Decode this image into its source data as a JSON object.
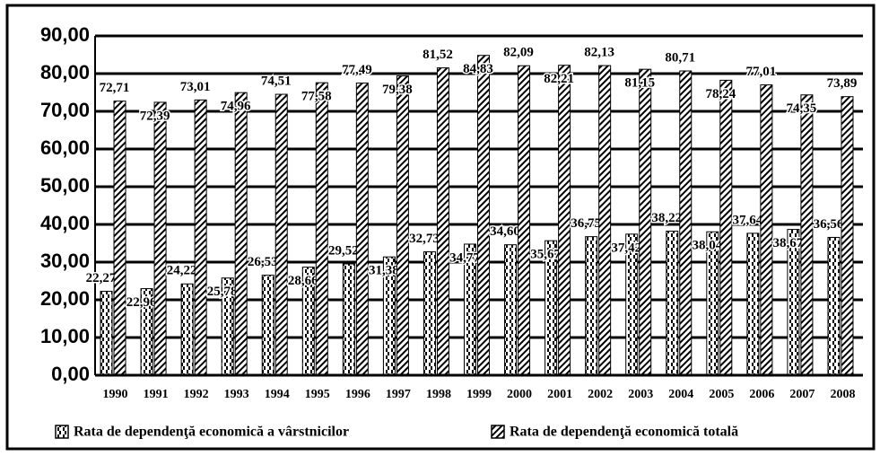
{
  "chart_data": {
    "type": "bar",
    "categories": [
      "1990",
      "1991",
      "1992",
      "1993",
      "1994",
      "1995",
      "1996",
      "1997",
      "1998",
      "1999",
      "2000",
      "2001",
      "2002",
      "2003",
      "2004",
      "2005",
      "2006",
      "2007",
      "2008"
    ],
    "series": [
      {
        "name": "Rata de dependenţă economică a vârstnicilor",
        "color": "#000000",
        "values": [
          22.27,
          22.96,
          24.22,
          25.78,
          26.53,
          28.66,
          29.52,
          31.38,
          32.73,
          34.77,
          34.6,
          35.67,
          36.75,
          37.42,
          38.22,
          38.04,
          37.64,
          38.67,
          36.56
        ],
        "value_labels": [
          "22,27",
          "22,96",
          "24,22",
          "25,78",
          "26,53",
          "28,66",
          "29,52",
          "31,38",
          "32,73",
          "34,77",
          "34,60",
          "35,67",
          "36,75",
          "37,42",
          "38,22",
          "38,04",
          "37,64",
          "38,67",
          "36,56"
        ]
      },
      {
        "name": "Rata de dependenţă economică totală",
        "color": "#000000",
        "values": [
          72.71,
          72.39,
          73.01,
          74.96,
          74.51,
          77.58,
          77.49,
          79.38,
          81.52,
          84.83,
          82.09,
          82.21,
          82.13,
          81.15,
          80.71,
          78.24,
          77.01,
          74.35,
          73.89
        ],
        "value_labels": [
          "72,71",
          "72,39",
          "73,01",
          "74,96",
          "74,51",
          "77,58",
          "77,49",
          "79,38",
          "81,52",
          "84,83",
          "82,09",
          "82,21",
          "82,13",
          "81,15",
          "80,71",
          "78,24",
          "77,01",
          "74,35",
          "73,89"
        ]
      }
    ],
    "ylim": [
      0,
      90
    ],
    "yticks": [
      {
        "value": 0,
        "label": "0,00"
      },
      {
        "value": 10,
        "label": "10,00"
      },
      {
        "value": 20,
        "label": "20,00"
      },
      {
        "value": 30,
        "label": "30,00"
      },
      {
        "value": 40,
        "label": "40,00"
      },
      {
        "value": 50,
        "label": "50,00"
      },
      {
        "value": 60,
        "label": "60,00"
      },
      {
        "value": 70,
        "label": "70,00"
      },
      {
        "value": 80,
        "label": "80,00"
      },
      {
        "value": 90,
        "label": "90,00"
      }
    ],
    "grid": true,
    "legend": "bottom"
  }
}
